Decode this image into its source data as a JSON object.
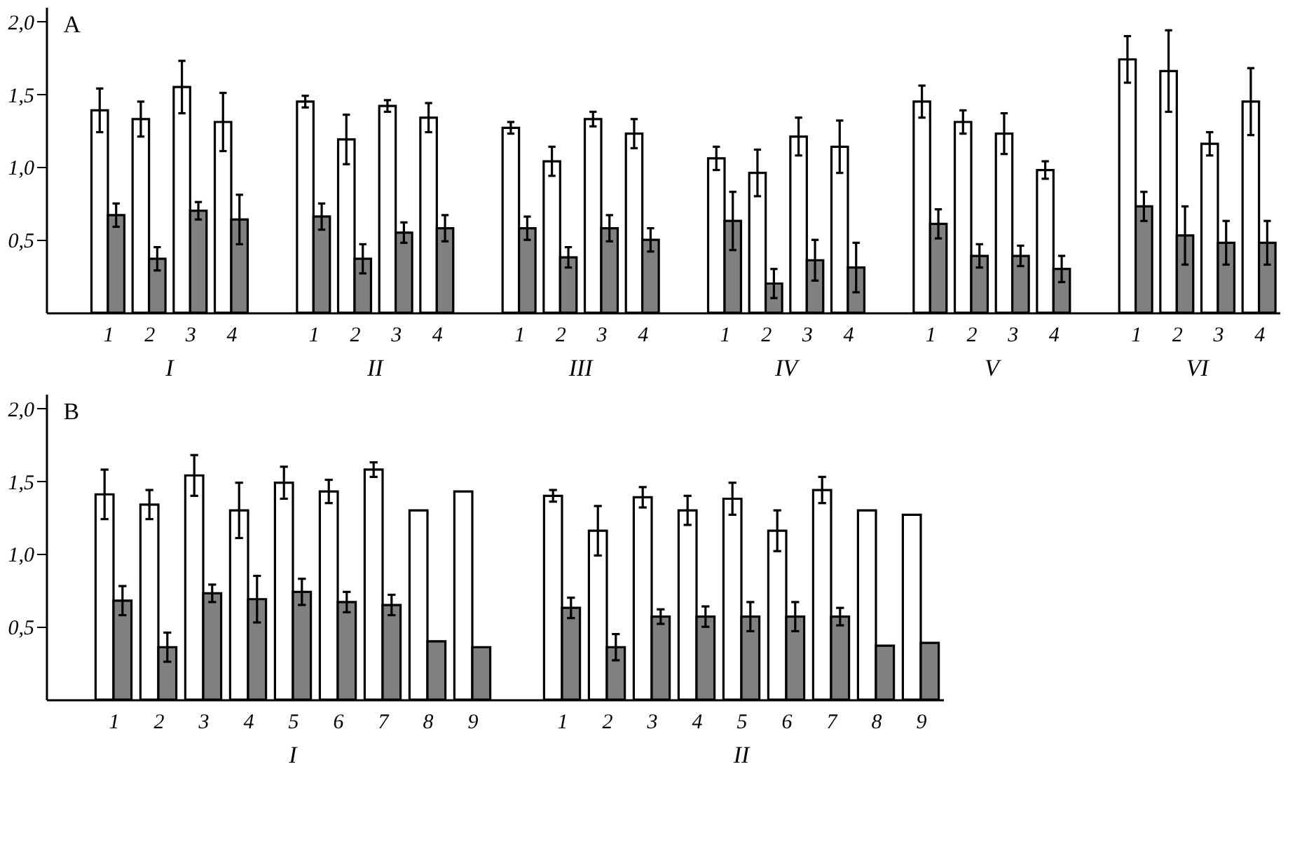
{
  "chart_data": [
    {
      "type": "bar",
      "title": "A",
      "categories": [
        null,
        "1",
        "2",
        "3",
        "4",
        null,
        "1",
        "2",
        "3",
        "4",
        null,
        "1",
        "2",
        "3",
        "4",
        null,
        "1",
        "2",
        "3",
        "4",
        null,
        "1",
        "2",
        "3",
        "4",
        null,
        "1",
        "2",
        "3",
        "4"
      ],
      "series": [
        {
          "color": "#ffffff",
          "values": [
            null,
            1.39,
            1.33,
            1.55,
            1.31,
            null,
            1.45,
            1.19,
            1.42,
            1.34,
            null,
            1.27,
            1.04,
            1.33,
            1.23,
            null,
            1.06,
            0.96,
            1.21,
            1.14,
            null,
            1.45,
            1.31,
            1.23,
            0.98,
            null,
            1.74,
            1.66,
            1.16,
            1.45
          ],
          "errors": [
            null,
            0.15,
            0.12,
            0.18,
            0.2,
            null,
            0.04,
            0.17,
            0.04,
            0.1,
            null,
            0.04,
            0.1,
            0.05,
            0.1,
            null,
            0.08,
            0.16,
            0.13,
            0.18,
            null,
            0.11,
            0.08,
            0.14,
            0.06,
            null,
            0.16,
            0.28,
            0.08,
            0.23
          ]
        },
        {
          "color": "#808080",
          "values": [
            null,
            0.67,
            0.37,
            0.7,
            0.64,
            null,
            0.66,
            0.37,
            0.55,
            0.58,
            null,
            0.58,
            0.38,
            0.58,
            0.5,
            null,
            0.63,
            0.2,
            0.36,
            0.31,
            null,
            0.61,
            0.39,
            0.39,
            0.3,
            null,
            0.73,
            0.53,
            0.48,
            0.48
          ],
          "errors": [
            null,
            0.08,
            0.08,
            0.06,
            0.17,
            null,
            0.09,
            0.1,
            0.07,
            0.09,
            null,
            0.08,
            0.07,
            0.09,
            0.08,
            null,
            0.2,
            0.1,
            0.14,
            0.17,
            null,
            0.1,
            0.08,
            0.07,
            0.09,
            null,
            0.1,
            0.2,
            0.15,
            0.15
          ]
        }
      ],
      "ylim": [
        0,
        2.1
      ],
      "yticks": [
        {
          "value": 0.5,
          "label": "0,5"
        },
        {
          "value": 1.0,
          "label": "1,0"
        },
        {
          "value": 1.5,
          "label": "1,5"
        },
        {
          "value": 2.0,
          "label": "2,0"
        }
      ],
      "annotations": [
        "I",
        "II",
        "III",
        "IV",
        "V",
        "VI"
      ]
    },
    {
      "type": "bar",
      "title": "B",
      "categories": [
        null,
        "1",
        "2",
        "3",
        "4",
        "5",
        "6",
        "7",
        "8",
        "9",
        null,
        "1",
        "2",
        "3",
        "4",
        "5",
        "6",
        "7",
        "8",
        "9"
      ],
      "series": [
        {
          "color": "#ffffff",
          "values": [
            null,
            1.41,
            1.34,
            1.54,
            1.3,
            1.49,
            1.43,
            1.58,
            1.3,
            1.43,
            null,
            1.4,
            1.16,
            1.39,
            1.3,
            1.38,
            1.16,
            1.44,
            1.3,
            1.27
          ],
          "errors": [
            null,
            0.17,
            0.1,
            0.14,
            0.19,
            0.11,
            0.08,
            0.05,
            null,
            null,
            null,
            0.04,
            0.17,
            0.07,
            0.1,
            0.11,
            0.14,
            0.09,
            null,
            null
          ]
        },
        {
          "color": "#808080",
          "values": [
            null,
            0.68,
            0.36,
            0.73,
            0.69,
            0.74,
            0.67,
            0.65,
            0.4,
            0.36,
            null,
            0.63,
            0.36,
            0.57,
            0.57,
            0.57,
            0.57,
            0.57,
            0.37,
            0.39
          ],
          "errors": [
            null,
            0.1,
            0.1,
            0.06,
            0.16,
            0.09,
            0.07,
            0.07,
            null,
            null,
            null,
            0.07,
            0.09,
            0.05,
            0.07,
            0.1,
            0.1,
            0.06,
            null,
            null
          ]
        }
      ],
      "ylim": [
        0,
        2.1
      ],
      "yticks": [
        {
          "value": 0.5,
          "label": "0,5"
        },
        {
          "value": 1.0,
          "label": "1,0"
        },
        {
          "value": 1.5,
          "label": "1,5"
        },
        {
          "value": 2.0,
          "label": "2,0"
        }
      ],
      "annotations": [
        "I",
        "II"
      ]
    }
  ]
}
